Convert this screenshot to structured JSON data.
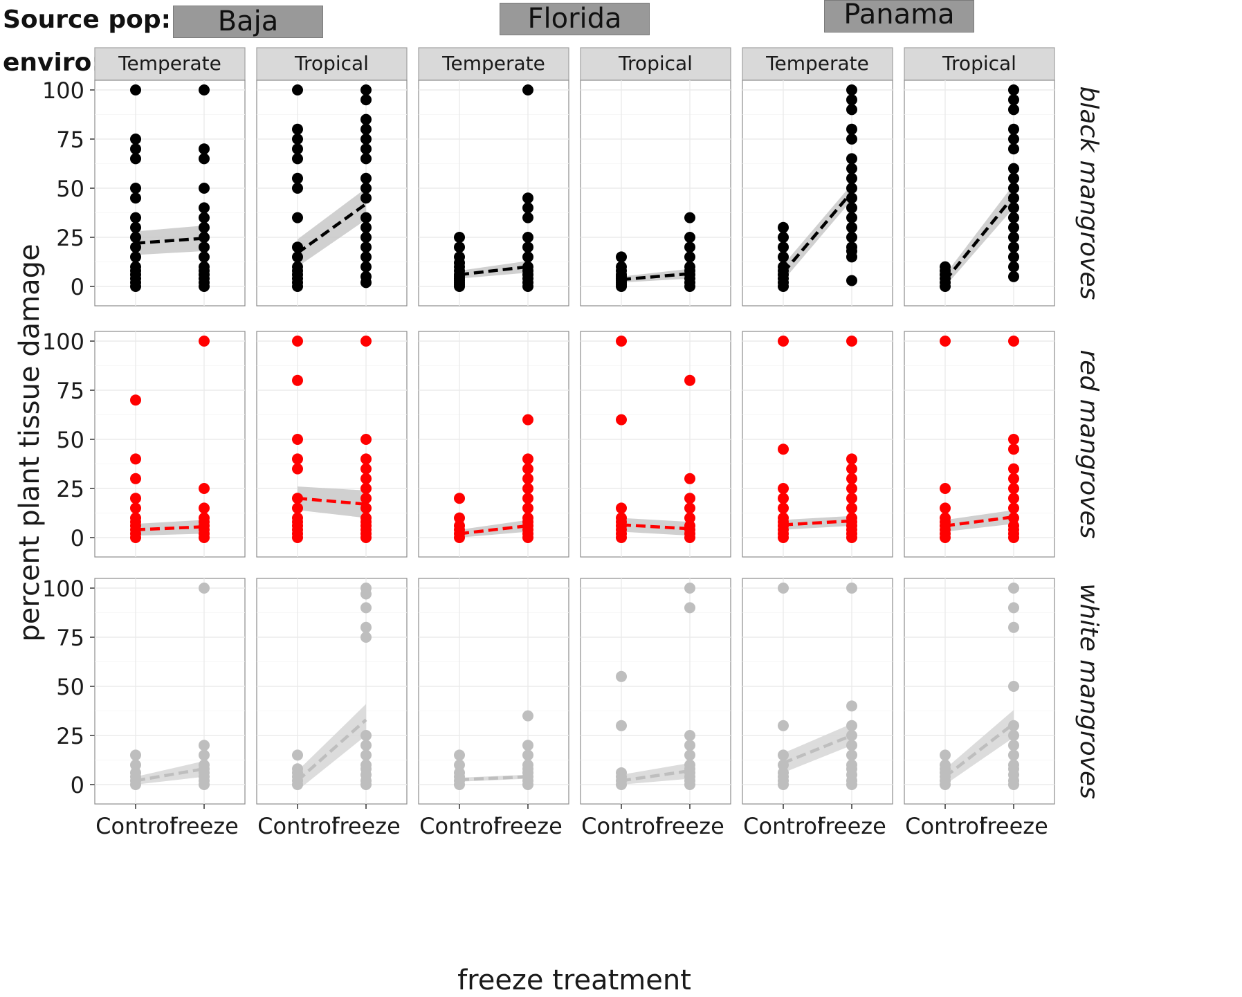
{
  "header": {
    "source_pop_label": "Source pop:",
    "enviro_label": "enviro:",
    "populations": [
      "Baja",
      "Florida",
      "Panama"
    ]
  },
  "chart_data": {
    "type": "scatter",
    "ylabel": "percent plant tissue damage",
    "xlabel": "freeze treatment",
    "x_categories": [
      "Control",
      "freeze"
    ],
    "ylim": [
      0,
      100
    ],
    "y_ticks": [
      0,
      25,
      50,
      75,
      100
    ],
    "grid": true,
    "columns": [
      {
        "population": "Baja",
        "enviro": "Temperate"
      },
      {
        "population": "Baja",
        "enviro": "Tropical"
      },
      {
        "population": "Florida",
        "enviro": "Temperate"
      },
      {
        "population": "Florida",
        "enviro": "Tropical"
      },
      {
        "population": "Panama",
        "enviro": "Temperate"
      },
      {
        "population": "Panama",
        "enviro": "Tropical"
      }
    ],
    "rows": [
      {
        "species": "black mangroves",
        "color": "#000000",
        "band_color": "#c8c8c8",
        "panels": [
          {
            "control": [
              0,
              2,
              4,
              6,
              8,
              10,
              15,
              20,
              25,
              30,
              35,
              45,
              50,
              65,
              70,
              75,
              100
            ],
            "freeze": [
              0,
              2,
              4,
              6,
              8,
              10,
              15,
              20,
              25,
              30,
              35,
              40,
              50,
              65,
              70,
              100
            ],
            "fit": [
              22,
              24.5
            ],
            "ci_control": [
              16,
              28
            ],
            "ci_freeze": [
              18,
              31
            ]
          },
          {
            "control": [
              0,
              2,
              4,
              6,
              8,
              10,
              15,
              20,
              35,
              50,
              55,
              65,
              70,
              75,
              80,
              100
            ],
            "freeze": [
              2,
              5,
              10,
              15,
              20,
              25,
              30,
              35,
              45,
              50,
              55,
              65,
              70,
              75,
              80,
              85,
              95,
              100
            ],
            "fit": [
              17,
              42
            ],
            "ci_control": [
              10,
              24
            ],
            "ci_freeze": [
              34,
              50
            ]
          },
          {
            "control": [
              0,
              1,
              2,
              3,
              4,
              5,
              6,
              8,
              10,
              12,
              15,
              20,
              25
            ],
            "freeze": [
              0,
              2,
              4,
              6,
              8,
              10,
              15,
              20,
              25,
              35,
              40,
              45,
              100
            ],
            "fit": [
              6,
              10
            ],
            "ci_control": [
              4,
              8
            ],
            "ci_freeze": [
              7,
              13
            ]
          },
          {
            "control": [
              0,
              1,
              2,
              3,
              4,
              5,
              6,
              8,
              10,
              15
            ],
            "freeze": [
              0,
              2,
              4,
              6,
              8,
              10,
              15,
              20,
              25,
              35
            ],
            "fit": [
              3.5,
              6.5
            ],
            "ci_control": [
              2,
              5
            ],
            "ci_freeze": [
              4,
              9
            ]
          },
          {
            "control": [
              0,
              2,
              4,
              6,
              8,
              10,
              15,
              20,
              25,
              30
            ],
            "freeze": [
              3,
              15,
              18,
              20,
              25,
              30,
              35,
              40,
              45,
              50,
              55,
              60,
              65,
              75,
              80,
              90,
              95,
              100
            ],
            "fit": [
              7,
              48
            ],
            "ci_control": [
              3,
              11
            ],
            "ci_freeze": [
              44,
              52
            ]
          },
          {
            "control": [
              0,
              2,
              4,
              6,
              8,
              10
            ],
            "freeze": [
              5,
              10,
              15,
              20,
              25,
              30,
              35,
              40,
              45,
              50,
              55,
              60,
              70,
              75,
              80,
              90,
              95,
              100
            ],
            "fit": [
              3,
              46
            ],
            "ci_control": [
              0,
              6
            ],
            "ci_freeze": [
              40,
              52
            ]
          }
        ]
      },
      {
        "species": "red mangroves",
        "color": "#ff0000",
        "band_color": "#c8c8c8",
        "panels": [
          {
            "control": [
              0,
              2,
              4,
              6,
              8,
              10,
              15,
              20,
              30,
              40,
              70
            ],
            "freeze": [
              0,
              2,
              4,
              6,
              8,
              10,
              15,
              25,
              100
            ],
            "fit": [
              4,
              5.5
            ],
            "ci_control": [
              1,
              7
            ],
            "ci_freeze": [
              2,
              9
            ]
          },
          {
            "control": [
              0,
              2,
              4,
              6,
              8,
              10,
              15,
              20,
              35,
              40,
              50,
              80,
              100
            ],
            "freeze": [
              0,
              2,
              4,
              6,
              8,
              10,
              15,
              20,
              25,
              30,
              35,
              40,
              50,
              100
            ],
            "fit": [
              20,
              17
            ],
            "ci_control": [
              14,
              26
            ],
            "ci_freeze": [
              10,
              24
            ]
          },
          {
            "control": [
              0,
              2,
              4,
              6,
              10,
              20
            ],
            "freeze": [
              0,
              2,
              4,
              6,
              8,
              10,
              15,
              20,
              25,
              30,
              35,
              40,
              60
            ],
            "fit": [
              2,
              6
            ],
            "ci_control": [
              0,
              4
            ],
            "ci_freeze": [
              3,
              9
            ]
          },
          {
            "control": [
              0,
              2,
              4,
              6,
              8,
              10,
              15,
              60,
              100
            ],
            "freeze": [
              0,
              2,
              4,
              6,
              10,
              15,
              20,
              30,
              80
            ],
            "fit": [
              6.5,
              4.5
            ],
            "ci_control": [
              3,
              10
            ],
            "ci_freeze": [
              1,
              8
            ]
          },
          {
            "control": [
              0,
              2,
              4,
              6,
              8,
              10,
              15,
              20,
              25,
              45,
              100
            ],
            "freeze": [
              0,
              2,
              4,
              6,
              8,
              10,
              15,
              20,
              25,
              30,
              35,
              40,
              100
            ],
            "fit": [
              6.5,
              8.5
            ],
            "ci_control": [
              4,
              9
            ],
            "ci_freeze": [
              6,
              11
            ]
          },
          {
            "control": [
              0,
              2,
              4,
              6,
              8,
              10,
              15,
              25,
              100
            ],
            "freeze": [
              0,
              2,
              4,
              6,
              10,
              15,
              20,
              25,
              30,
              35,
              45,
              50,
              100
            ],
            "fit": [
              6,
              10.5
            ],
            "ci_control": [
              3,
              9
            ],
            "ci_freeze": [
              7,
              14
            ]
          }
        ]
      },
      {
        "species": "white mangroves",
        "color": "#bebebe",
        "band_color": "#d6d6d6",
        "panels": [
          {
            "control": [
              0,
              2,
              4,
              6,
              10,
              15
            ],
            "freeze": [
              0,
              2,
              4,
              6,
              8,
              10,
              15,
              20,
              100
            ],
            "fit": [
              2,
              8
            ],
            "ci_control": [
              0,
              4
            ],
            "ci_freeze": [
              4,
              12
            ]
          },
          {
            "control": [
              0,
              2,
              4,
              6,
              8,
              15
            ],
            "freeze": [
              0,
              2,
              5,
              8,
              10,
              15,
              20,
              25,
              75,
              80,
              90,
              97,
              100
            ],
            "fit": [
              2,
              33
            ],
            "ci_control": [
              -3,
              7
            ],
            "ci_freeze": [
              25,
              41
            ]
          },
          {
            "control": [
              0,
              2,
              4,
              6,
              10,
              15
            ],
            "freeze": [
              0,
              2,
              4,
              6,
              8,
              10,
              15,
              20,
              35
            ],
            "fit": [
              2.5,
              4
            ],
            "ci_control": [
              1.5,
              3.5
            ],
            "ci_freeze": [
              3,
              5
            ]
          },
          {
            "control": [
              0,
              2,
              4,
              6,
              30,
              55
            ],
            "freeze": [
              0,
              2,
              4,
              6,
              8,
              10,
              15,
              20,
              25,
              90,
              100
            ],
            "fit": [
              2,
              7
            ],
            "ci_control": [
              0,
              5
            ],
            "ci_freeze": [
              3,
              11
            ]
          },
          {
            "control": [
              0,
              2,
              4,
              6,
              10,
              15,
              30,
              100
            ],
            "freeze": [
              0,
              2,
              5,
              8,
              10,
              15,
              20,
              25,
              30,
              40,
              100
            ],
            "fit": [
              11,
              25
            ],
            "ci_control": [
              6,
              16
            ],
            "ci_freeze": [
              20,
              31
            ]
          },
          {
            "control": [
              0,
              2,
              4,
              6,
              8,
              10,
              15
            ],
            "freeze": [
              0,
              2,
              5,
              8,
              10,
              15,
              20,
              25,
              30,
              50,
              80,
              90,
              100
            ],
            "fit": [
              4,
              31
            ],
            "ci_control": [
              0,
              8
            ],
            "ci_freeze": [
              24,
              38
            ]
          }
        ]
      }
    ]
  }
}
